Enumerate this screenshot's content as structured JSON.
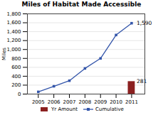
{
  "chart_data": {
    "type": "combo",
    "title": "Miles of Habitat Made Accessible",
    "x": [
      2005,
      2006,
      2007,
      2008,
      2009,
      2010,
      2011
    ],
    "xlim": [
      2004.3,
      2011.85
    ],
    "xticks": [
      2005,
      2006,
      2007,
      2008,
      2009,
      2010,
      2011
    ],
    "ylim": [
      0,
      1800
    ],
    "yticks": [
      0,
      200,
      400,
      600,
      800,
      {
        "value": 1000,
        "label": "1,000"
      },
      {
        "value": 1200,
        "label": "1,200"
      },
      {
        "value": 1400,
        "label": "1,400"
      },
      {
        "value": 1600,
        "label": "1,600"
      },
      {
        "value": 1800,
        "label": "1,800"
      }
    ],
    "ylabel": "Miles",
    "grid": true,
    "legend": "bottom",
    "series": [
      {
        "name": "Yr Amount",
        "type": "bar",
        "color": "#8B2020",
        "values": [
          null,
          null,
          null,
          null,
          null,
          null,
          281
        ]
      },
      {
        "name": "Cumulative",
        "type": "line",
        "color": "#3355AA",
        "marker": "square",
        "values": [
          50,
          175,
          300,
          575,
          800,
          1325,
          1590
        ]
      }
    ],
    "annotations": [
      {
        "text": "1,590",
        "x": 2011,
        "y": 1590
      },
      {
        "text": "281",
        "x": 2011,
        "y": 281
      }
    ]
  }
}
